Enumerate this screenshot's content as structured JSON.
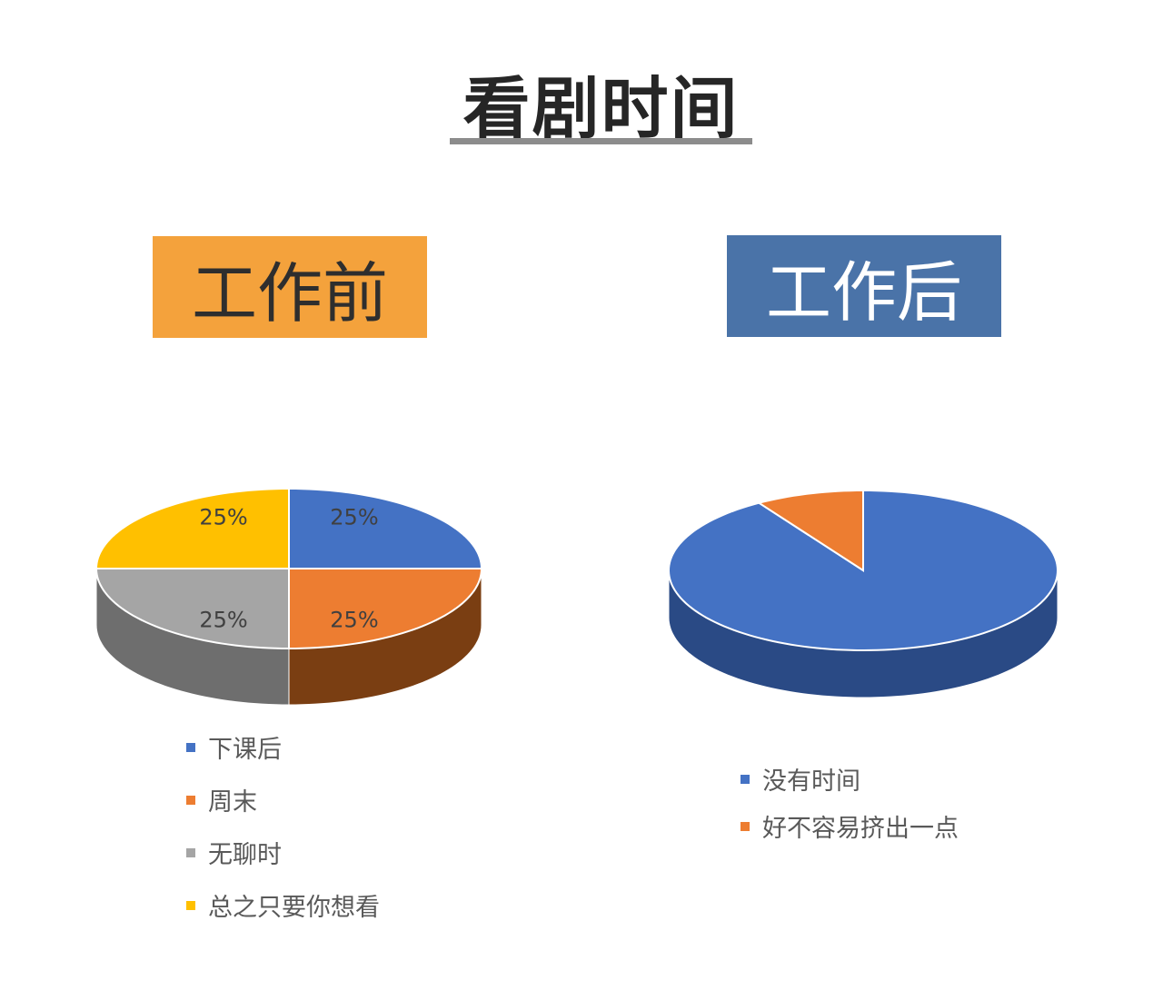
{
  "title": "看剧时间",
  "chart_data": [
    {
      "type": "pie",
      "title": "工作前",
      "categories": [
        "下课后",
        "周末",
        "无聊时",
        "总之只要你想看"
      ],
      "values": [
        25,
        25,
        25,
        25
      ],
      "data_labels": [
        "25%",
        "25%",
        "25%",
        "25%"
      ],
      "colors": [
        "#4472c4",
        "#ed7d31",
        "#a5a5a5",
        "#ffc000"
      ],
      "side_colors": [
        "#2f5597",
        "#7a3e12",
        "#6e6e6e",
        "#b38600"
      ],
      "legend_placement": "bottom",
      "style": "3d"
    },
    {
      "type": "pie",
      "title": "工作后",
      "categories": [
        "没有时间",
        "好不容易挤出一点"
      ],
      "values": [
        91,
        9
      ],
      "colors": [
        "#4472c4",
        "#ed7d31"
      ],
      "side_colors": [
        "#2a4a85",
        "#8a4a1c"
      ],
      "legend_placement": "bottom",
      "style": "3d"
    }
  ]
}
